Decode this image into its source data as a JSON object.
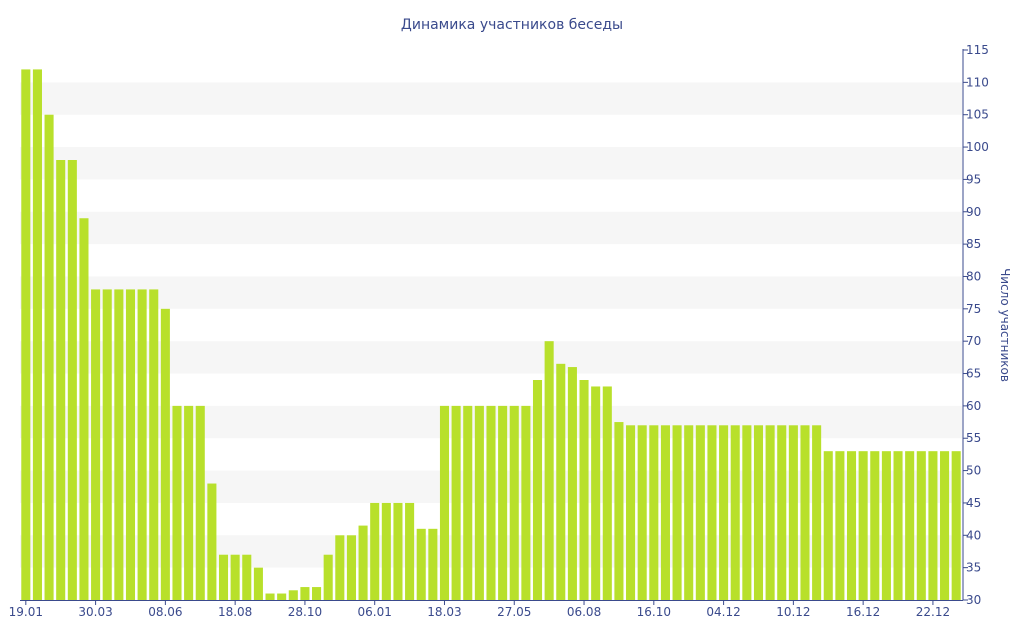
{
  "chart_data": {
    "type": "bar",
    "title": "Динамика участников беседы",
    "ylabel": "Число участников",
    "xlabel": "",
    "ylim": [
      30,
      115
    ],
    "yticks": [
      30,
      35,
      40,
      45,
      50,
      55,
      60,
      65,
      70,
      75,
      80,
      85,
      90,
      95,
      100,
      105,
      110,
      115
    ],
    "y_axis_position": "right",
    "grid": "horizontal-bands",
    "legend": "none",
    "colors": {
      "bar": "#b8e02b",
      "band": "#f6f6f6",
      "text": "#3a4a8c",
      "axis": "#3a4a8c"
    },
    "x_tick_labels": [
      "19.01",
      "30.03",
      "08.06",
      "18.08",
      "28.10",
      "06.01",
      "18.03",
      "27.05",
      "06.08",
      "16.10",
      "04.12",
      "10.12",
      "16.12",
      "22.12"
    ],
    "x_tick_positions": [
      0,
      6,
      12,
      18,
      24,
      30,
      36,
      42,
      48,
      54,
      60,
      66,
      72,
      78
    ],
    "values": [
      112,
      112,
      105,
      98,
      98,
      89,
      78,
      78,
      78,
      78,
      78,
      78,
      75,
      60,
      60,
      60,
      48,
      37,
      37,
      37,
      35,
      31,
      31,
      31.5,
      32,
      32,
      37,
      40,
      40,
      41.5,
      45,
      45,
      45,
      45,
      41,
      41,
      60,
      60,
      60,
      60,
      60,
      60,
      60,
      60,
      64,
      70,
      66.5,
      66,
      64,
      63,
      63,
      57.5,
      57,
      57,
      57,
      57,
      57,
      57,
      57,
      57,
      57,
      57,
      57,
      57,
      57,
      57,
      57,
      57,
      57,
      53,
      53,
      53,
      53,
      53,
      53,
      53,
      53,
      53,
      53,
      53,
      53
    ]
  }
}
